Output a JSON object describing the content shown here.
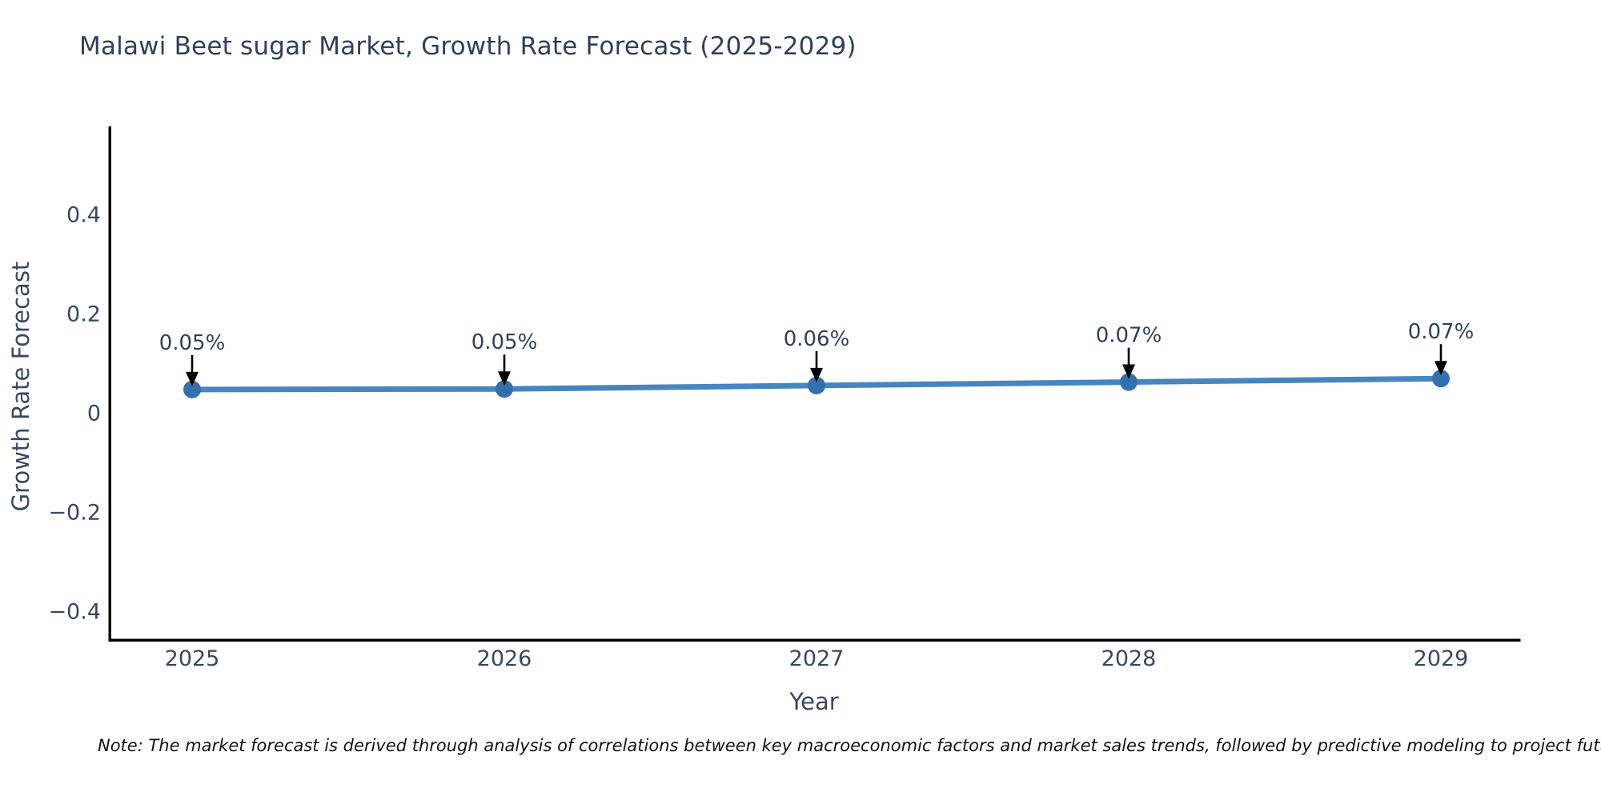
{
  "title": "Malawi Beet sugar Market, Growth Rate Forecast (2025-2029)",
  "footnote": "Note: The market forecast is derived through analysis of correlations between key macroeconomic factors and market sales trends, followed by predictive modeling to project future sa",
  "chart_data": {
    "type": "line",
    "title": "Malawi Beet sugar Market, Growth Rate Forecast (2025-2029)",
    "xlabel": "Year",
    "ylabel": "Growth Rate Forecast",
    "x": [
      2025,
      2026,
      2027,
      2028,
      2029
    ],
    "values": [
      0.047,
      0.048,
      0.055,
      0.062,
      0.069
    ],
    "point_labels": [
      "0.05%",
      "0.05%",
      "0.06%",
      "0.07%",
      "0.07%"
    ],
    "xtick_labels": [
      "2025",
      "2026",
      "2027",
      "2028",
      "2029"
    ],
    "yticks": [
      -0.4,
      -0.2,
      0,
      0.2,
      0.4
    ],
    "ytick_labels": [
      "−0.4",
      "−0.2",
      "0",
      "0.2",
      "0.4"
    ],
    "ylim": [
      -0.46,
      0.575
    ],
    "grid": false,
    "legend": "none",
    "colors": {
      "line": "#4685c0",
      "marker": "#3470af",
      "arrow": "#000000",
      "axis": "#000000",
      "text": "#3a4763"
    }
  }
}
